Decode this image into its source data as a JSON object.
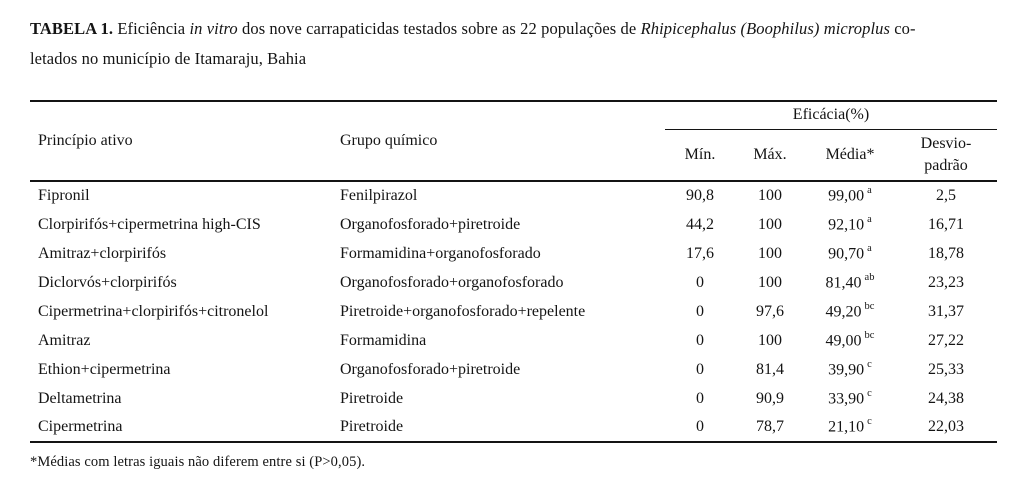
{
  "title": {
    "bold": "TABELA 1.",
    "line1_a": " Eficiência ",
    "line1_italic1": "in vitro",
    "line1_b": " dos nove carrapaticidas testados sobre as 22 populações de ",
    "line1_italic2": "Rhipicephalus (Boophilus) microplus",
    "line1_c": " co-",
    "line2": "letados no município de Itamaraju, Bahia"
  },
  "table": {
    "header": {
      "principio": "Princípio ativo",
      "grupo": "Grupo químico",
      "eficacia_group": "Eficácia(%)",
      "min": "Mín.",
      "max": "Máx.",
      "media": "Média*",
      "std_line1": "Desvio-",
      "std_line2": "padrão"
    },
    "rows": [
      {
        "principio": "Fipronil",
        "grupo": "Fenilpirazol",
        "min": "90,8",
        "max": "100",
        "media": "99,00",
        "media_sup": "a",
        "std": "2,5"
      },
      {
        "principio": "Clorpirifós+cipermetrina high-CIS",
        "grupo": "Organofosforado+piretroide",
        "min": "44,2",
        "max": "100",
        "media": "92,10",
        "media_sup": "a",
        "std": "16,71"
      },
      {
        "principio": "Amitraz+clorpirifós",
        "grupo": "Formamidina+organofosforado",
        "min": "17,6",
        "max": "100",
        "media": "90,70",
        "media_sup": "a",
        "std": "18,78"
      },
      {
        "principio": "Diclorvós+clorpirifós",
        "grupo": "Organofosforado+organofosforado",
        "min": "0",
        "max": "100",
        "media": "81,40",
        "media_sup": "ab",
        "std": "23,23"
      },
      {
        "principio": "Cipermetrina+clorpirifós+citronelol",
        "grupo": "Piretroide+organofosforado+repelente",
        "min": "0",
        "max": "97,6",
        "media": "49,20",
        "media_sup": "bc",
        "std": "31,37"
      },
      {
        "principio": "Amitraz",
        "grupo": "Formamidina",
        "min": "0",
        "max": "100",
        "media": "49,00",
        "media_sup": "bc",
        "std": "27,22"
      },
      {
        "principio": "Ethion+cipermetrina",
        "grupo": "Organofosforado+piretroide",
        "min": "0",
        "max": "81,4",
        "media": "39,90",
        "media_sup": "c",
        "std": "25,33"
      },
      {
        "principio": "Deltametrina",
        "grupo": "Piretroide",
        "min": "0",
        "max": "90,9",
        "media": "33,90",
        "media_sup": "c",
        "std": "24,38"
      },
      {
        "principio": "Cipermetrina",
        "grupo": "Piretroide",
        "min": "0",
        "max": "78,7",
        "media": "21,10",
        "media_sup": "c",
        "std": "22,03"
      }
    ]
  },
  "footnote": "*Médias com letras iguais não diferem entre si (P>0,05)."
}
